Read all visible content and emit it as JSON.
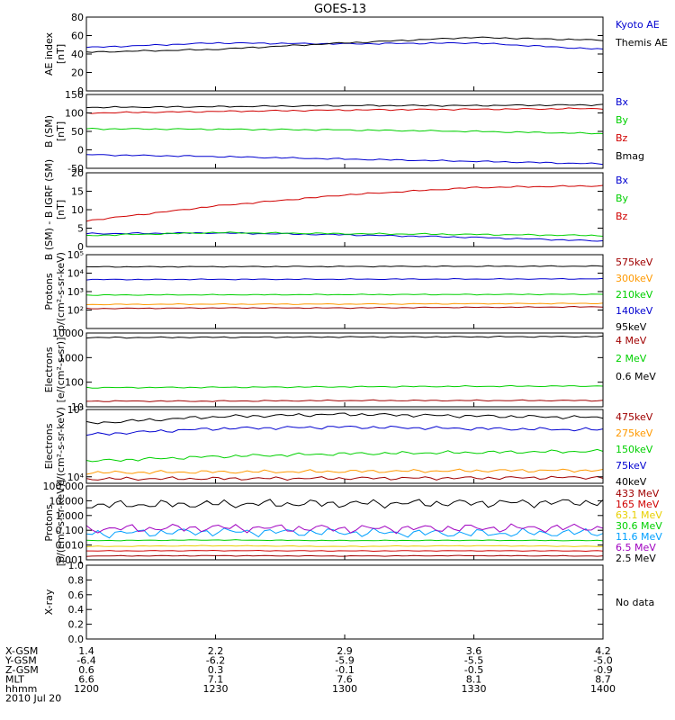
{
  "title": "GOES-13",
  "footer": {
    "rows": [
      {
        "label": "X-GSM",
        "values": [
          "1.4",
          "2.2",
          "2.9",
          "3.6",
          "4.2"
        ]
      },
      {
        "label": "Y-GSM",
        "values": [
          "-6.4",
          "-6.2",
          "-5.9",
          "-5.5",
          "-5.0"
        ]
      },
      {
        "label": "Z-GSM",
        "values": [
          "0.6",
          "0.3",
          "-0.1",
          "-0.5",
          "-0.9"
        ]
      },
      {
        "label": "MLT",
        "values": [
          "6.6",
          "7.1",
          "7.6",
          "8.1",
          "8.7"
        ]
      },
      {
        "label": "hhmm",
        "values": [
          "1200",
          "1230",
          "1300",
          "1330",
          "1400"
        ]
      }
    ],
    "date": "2010 Jul 20"
  },
  "colors": {
    "black": "#000000",
    "blue": "#0000d0",
    "green": "#00d000",
    "red": "#d00000",
    "darkred": "#a00000",
    "orange": "#ff9900",
    "yellow": "#e8d000",
    "cyan": "#00a0ff",
    "purple": "#a000c0"
  },
  "chart_data": [
    {
      "type": "line",
      "id": "ae",
      "ylabel": [
        "AE index",
        "[nT]"
      ],
      "ylim": [
        0,
        80
      ],
      "scale": "linear",
      "yticks": [
        0,
        20,
        40,
        60,
        80
      ],
      "ytick_labels": [
        "0",
        "20",
        "40",
        "60",
        "80"
      ],
      "x": [
        "1200",
        "1230",
        "1300",
        "1330",
        "1400"
      ],
      "series": [
        {
          "name": "Kyoto AE",
          "color": "blue",
          "values": [
            47,
            52,
            51,
            52,
            45
          ]
        },
        {
          "name": "Themis AE",
          "color": "black",
          "values": [
            42,
            45,
            52,
            58,
            55
          ]
        }
      ],
      "legend": "right"
    },
    {
      "type": "line",
      "id": "bfield",
      "ylabel": [
        "B (SM)",
        "[nT]"
      ],
      "ylim": [
        -50,
        150
      ],
      "scale": "linear",
      "yticks": [
        -50,
        0,
        50,
        100,
        150
      ],
      "ytick_labels": [
        "-50",
        "0",
        "50",
        "100",
        "150"
      ],
      "x": [
        "1200",
        "1230",
        "1300",
        "1330",
        "1400"
      ],
      "series": [
        {
          "name": "Bx",
          "color": "blue",
          "values": [
            -13,
            -18,
            -25,
            -31,
            -38
          ]
        },
        {
          "name": "By",
          "color": "green",
          "values": [
            57,
            56,
            54,
            50,
            44
          ]
        },
        {
          "name": "Bz",
          "color": "red",
          "values": [
            100,
            104,
            108,
            110,
            112
          ]
        },
        {
          "name": "Bmag",
          "color": "black",
          "values": [
            115,
            117,
            120,
            120,
            122
          ]
        }
      ],
      "legend": "right"
    },
    {
      "type": "line",
      "id": "bigrf",
      "ylabel": [
        "B (SM) - B IGRF (SM)",
        "[nT]"
      ],
      "ylim": [
        0,
        20
      ],
      "scale": "linear",
      "yticks": [
        0,
        5,
        10,
        15,
        20
      ],
      "ytick_labels": [
        "0",
        "5",
        "10",
        "15",
        "20"
      ],
      "x": [
        "1200",
        "1230",
        "1300",
        "1330",
        "1400"
      ],
      "series": [
        {
          "name": "Bx",
          "color": "blue",
          "values": [
            3.5,
            3.7,
            3.2,
            2.5,
            1.5
          ]
        },
        {
          "name": "By",
          "color": "green",
          "values": [
            3.0,
            3.8,
            3.5,
            3.3,
            3.0
          ]
        },
        {
          "name": "Bz",
          "color": "red",
          "values": [
            7.0,
            11.0,
            14.0,
            16.0,
            16.5
          ]
        }
      ],
      "legend": "right"
    },
    {
      "type": "line",
      "id": "protons-kev",
      "ylabel": [
        "Protons",
        "p/(cm²-s-sr-keV)"
      ],
      "ylim": [
        10,
        100000
      ],
      "scale": "log",
      "yticks": [
        100,
        1000,
        10000,
        100000
      ],
      "ytick_labels": [
        "10²",
        "10³",
        "10⁴",
        "10⁵"
      ],
      "x": [
        "1200",
        "1230",
        "1300",
        "1330",
        "1400"
      ],
      "series": [
        {
          "name": "575keV",
          "color": "darkred",
          "values": [
            120,
            130,
            130,
            140,
            150
          ]
        },
        {
          "name": "300keV",
          "color": "orange",
          "values": [
            200,
            210,
            210,
            220,
            230
          ]
        },
        {
          "name": "210keV",
          "color": "green",
          "values": [
            650,
            670,
            690,
            700,
            720
          ]
        },
        {
          "name": "140keV",
          "color": "blue",
          "values": [
            4500,
            4600,
            4700,
            4800,
            4900
          ]
        },
        {
          "name": "95keV",
          "color": "black",
          "values": [
            22000,
            22500,
            23000,
            23500,
            24000
          ]
        }
      ],
      "legend": "right"
    },
    {
      "type": "line",
      "id": "electrons-mev",
      "ylabel": [
        "Electrons",
        "[e/(cm²-s-sr)]"
      ],
      "ylim": [
        10,
        10000
      ],
      "scale": "log",
      "yticks": [
        10,
        100,
        1000,
        10000
      ],
      "ytick_labels": [
        "10",
        "100",
        "1000",
        "10000"
      ],
      "x": [
        "1200",
        "1230",
        "1300",
        "1330",
        "1400"
      ],
      "series": [
        {
          "name": "4 MeV",
          "color": "darkred",
          "values": [
            17,
            17,
            18,
            18,
            18
          ]
        },
        {
          "name": "2 MeV",
          "color": "green",
          "values": [
            60,
            62,
            65,
            68,
            70
          ]
        },
        {
          "name": "0.6 MeV",
          "color": "black",
          "values": [
            6500,
            6700,
            6900,
            7000,
            7200
          ]
        }
      ],
      "legend": "right"
    },
    {
      "type": "line",
      "id": "electrons-kev",
      "ylabel": [
        "Electrons",
        "e/(cm²-s-sr-keV)"
      ],
      "ylim": [
        8000,
        100000
      ],
      "scale": "log",
      "yticks": [
        10000,
        100000
      ],
      "ytick_labels": [
        "10⁴",
        "10⁵"
      ],
      "x": [
        "1200",
        "1230",
        "1300",
        "1330",
        "1400"
      ],
      "series": [
        {
          "name": "475keV",
          "color": "darkred",
          "values": [
            9300,
            9400,
            9500,
            9600,
            9800
          ]
        },
        {
          "name": "275keV",
          "color": "orange",
          "values": [
            11500,
            11800,
            12000,
            12300,
            12500
          ]
        },
        {
          "name": "150keV",
          "color": "green",
          "values": [
            17000,
            20000,
            22000,
            23000,
            24000
          ]
        },
        {
          "name": "75keV",
          "color": "blue",
          "values": [
            42000,
            52000,
            55000,
            52000,
            50000
          ]
        },
        {
          "name": "40keV",
          "color": "black",
          "values": [
            62000,
            78000,
            85000,
            80000,
            76000
          ]
        }
      ],
      "legend": "right"
    },
    {
      "type": "line",
      "id": "protons-mev",
      "ylabel": [
        "Protons",
        "[p/(cm²-s-sr-keV)]"
      ],
      "ylim": [
        0.001,
        100
      ],
      "scale": "log",
      "yticks": [
        0.001,
        0.01,
        0.1,
        1,
        10,
        100
      ],
      "ytick_labels": [
        "0.001",
        "0.010",
        "0.100",
        "1.000",
        "10.000",
        "100.000"
      ],
      "x": [
        "1200",
        "1230",
        "1300",
        "1330",
        "1400"
      ],
      "series": [
        {
          "name": "433 MeV",
          "color": "darkred",
          "values": [
            0.0018,
            0.0019,
            0.0018,
            0.0019,
            0.0018
          ]
        },
        {
          "name": "165 MeV",
          "color": "red",
          "values": [
            0.004,
            0.0042,
            0.004,
            0.0041,
            0.004
          ]
        },
        {
          "name": "63.1 MeV",
          "color": "yellow",
          "values": [
            0.008,
            0.009,
            0.008,
            0.009,
            0.008
          ]
        },
        {
          "name": "30.6 MeV",
          "color": "green",
          "values": [
            0.02,
            0.022,
            0.02,
            0.021,
            0.02
          ]
        },
        {
          "name": "11.6 MeV",
          "color": "cyan",
          "values": [
            0.06,
            0.08,
            0.07,
            0.06,
            0.07
          ]
        },
        {
          "name": "6.5 MeV",
          "color": "purple",
          "values": [
            0.12,
            0.15,
            0.13,
            0.14,
            0.15
          ]
        },
        {
          "name": "2.5 MeV",
          "color": "black",
          "values": [
            5.0,
            6.0,
            6.5,
            7.0,
            8.0
          ]
        }
      ],
      "legend": "right"
    },
    {
      "type": "line",
      "id": "xray",
      "ylabel": [
        "X-ray",
        ""
      ],
      "ylim": [
        0,
        1
      ],
      "scale": "linear",
      "yticks": [
        0,
        0.2,
        0.4,
        0.6,
        0.8,
        1.0
      ],
      "ytick_labels": [
        "0.0",
        "0.2",
        "0.4",
        "0.6",
        "0.8",
        "1.0"
      ],
      "x": [
        "1200",
        "1230",
        "1300",
        "1330",
        "1400"
      ],
      "series": [],
      "note": "No data",
      "legend": "right"
    }
  ]
}
